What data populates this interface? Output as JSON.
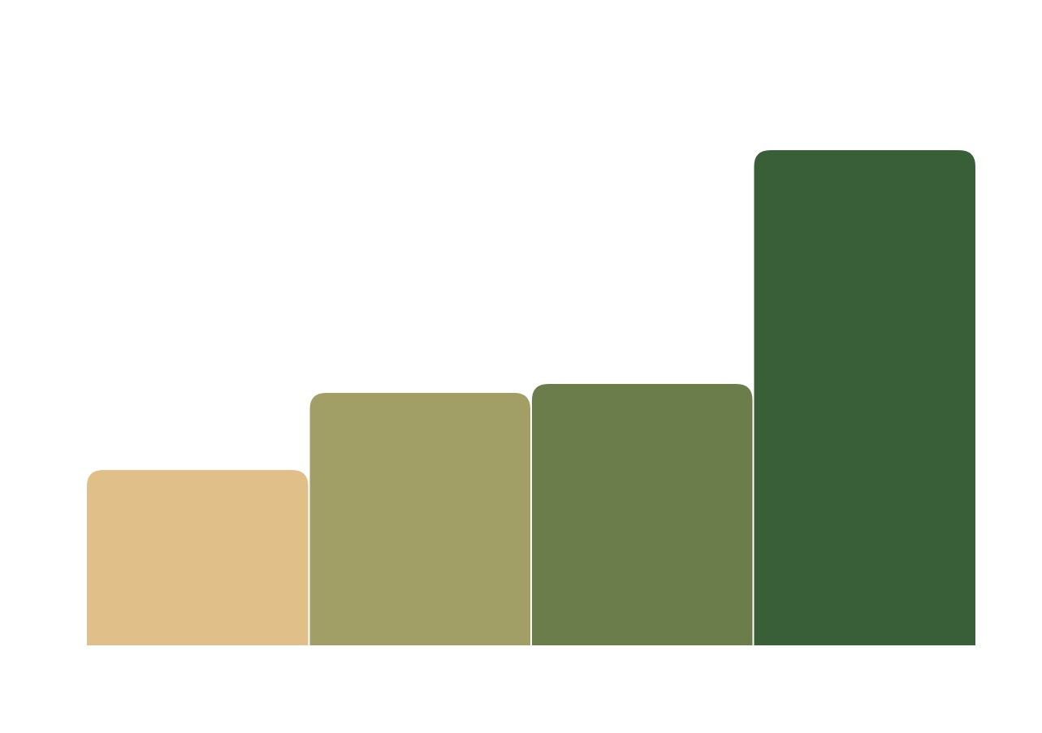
{
  "chart_data": {
    "type": "bar",
    "categories": [
      "",
      "",
      "",
      ""
    ],
    "values": [
      216,
      311,
      322,
      610
    ],
    "colors": [
      "#E0C088",
      "#A19F65",
      "#6A7D4B",
      "#395F39"
    ],
    "title": "",
    "xlabel": "",
    "ylabel": "",
    "ylim": [
      0,
      610
    ],
    "grid": false,
    "legend": "none"
  }
}
